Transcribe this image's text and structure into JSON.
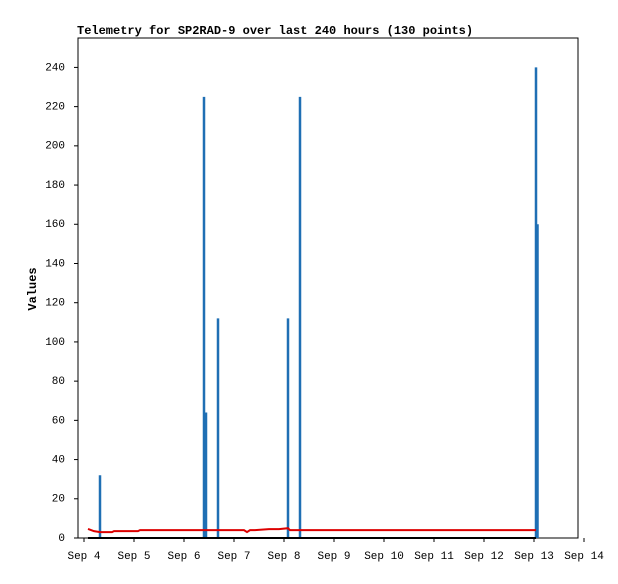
{
  "chart_data": {
    "type": "line",
    "title": "Telemetry for SP2RAD-9 over last 240 hours (130 points)",
    "ylabel": "Values",
    "xlim": [
      3.88,
      13.88
    ],
    "ylim": [
      0,
      255
    ],
    "xticks": [
      {
        "value": 4,
        "label": "Sep 4"
      },
      {
        "value": 5,
        "label": "Sep 5"
      },
      {
        "value": 6,
        "label": "Sep 6"
      },
      {
        "value": 7,
        "label": "Sep 7"
      },
      {
        "value": 8,
        "label": "Sep 8"
      },
      {
        "value": 9,
        "label": "Sep 9"
      },
      {
        "value": 10,
        "label": "Sep 10"
      },
      {
        "value": 11,
        "label": "Sep 11"
      },
      {
        "value": 12,
        "label": "Sep 12"
      },
      {
        "value": 13,
        "label": "Sep 13"
      },
      {
        "value": 14,
        "label": "Sep 14"
      }
    ],
    "yticks": [
      0,
      20,
      40,
      60,
      80,
      100,
      120,
      140,
      160,
      180,
      200,
      220,
      240
    ],
    "series": [
      {
        "style": "bar",
        "color": "#1f6fb4",
        "x": [
          4.32,
          6.4,
          6.44,
          6.68,
          8.08,
          8.32,
          13.04,
          13.07
        ],
        "values": [
          32,
          225,
          64,
          112,
          112,
          225,
          240,
          160
        ]
      },
      {
        "style": "line",
        "color": "#000000",
        "x": [
          4.08,
          13.04
        ],
        "values": [
          0,
          0
        ]
      },
      {
        "style": "line",
        "color": "#dd0000",
        "x": [
          4.08,
          4.2,
          4.32,
          4.56,
          4.6,
          5.08,
          5.12,
          6.2,
          7.2,
          7.26,
          7.32,
          7.42,
          7.7,
          7.9,
          8.08,
          8.12,
          13.04
        ],
        "values": [
          4.6,
          3.5,
          3,
          3,
          3.5,
          3.5,
          4,
          4,
          4,
          3,
          4,
          4,
          4.5,
          4.5,
          5,
          4,
          4
        ]
      }
    ]
  }
}
